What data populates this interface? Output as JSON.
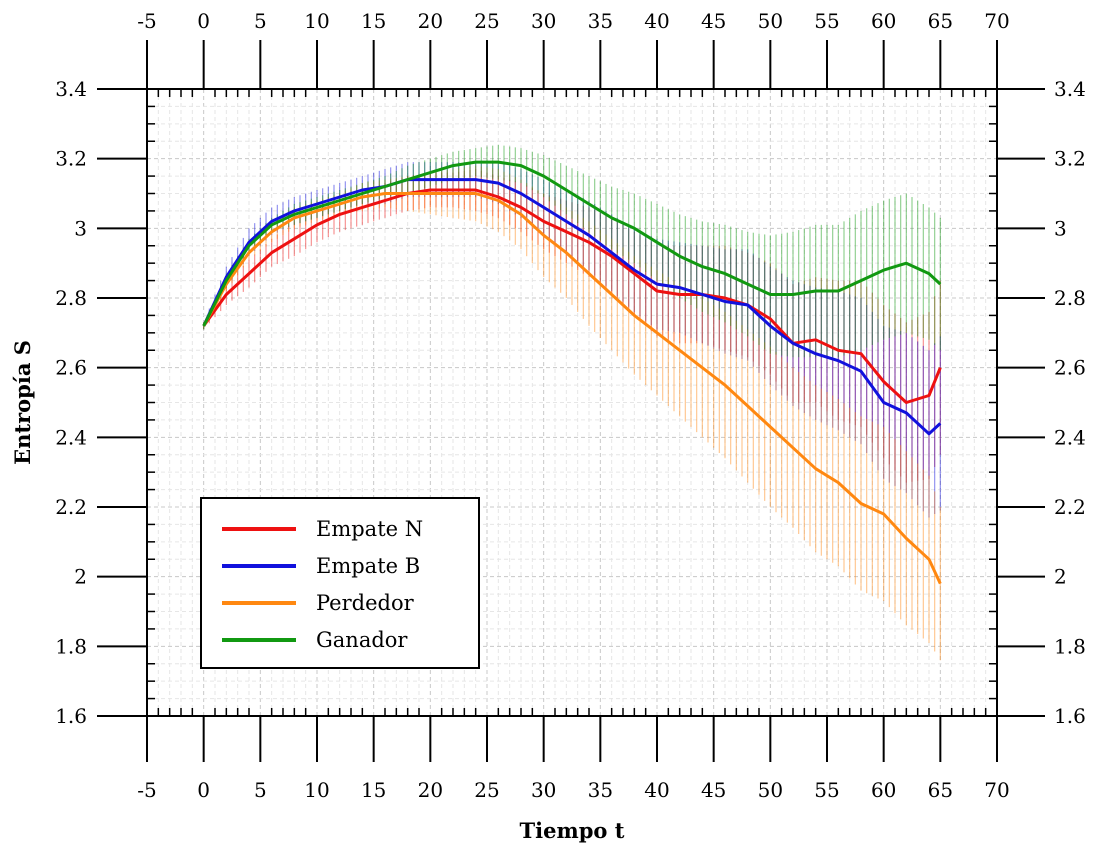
{
  "chart_data": {
    "type": "line",
    "xlabel": "Tiempo t",
    "ylabel": "Entropía S",
    "xlim": [
      -5,
      70
    ],
    "ylim": [
      1.6,
      3.4
    ],
    "x_ticks": [
      "-5",
      "0",
      "5",
      "10",
      "15",
      "20",
      "25",
      "30",
      "35",
      "40",
      "45",
      "50",
      "55",
      "60",
      "65",
      "70"
    ],
    "y_ticks": [
      "1.6",
      "1.8",
      "2",
      "2.2",
      "2.4",
      "2.6",
      "2.8",
      "3",
      "3.2",
      "3.4"
    ],
    "grid": true,
    "legend_position": "bottom-left",
    "error_bars": true,
    "series": [
      {
        "name": "Empate N",
        "color": "#ee1111",
        "x": [
          0,
          2,
          4,
          6,
          8,
          10,
          12,
          14,
          16,
          18,
          20,
          22,
          24,
          26,
          28,
          30,
          32,
          34,
          36,
          38,
          40,
          42,
          44,
          46,
          48,
          50,
          52,
          54,
          56,
          58,
          60,
          62,
          64,
          65
        ],
        "y": [
          2.72,
          2.81,
          2.87,
          2.93,
          2.97,
          3.01,
          3.04,
          3.06,
          3.08,
          3.1,
          3.11,
          3.11,
          3.11,
          3.09,
          3.06,
          3.02,
          2.99,
          2.96,
          2.92,
          2.87,
          2.82,
          2.81,
          2.81,
          2.8,
          2.78,
          2.74,
          2.67,
          2.68,
          2.65,
          2.64,
          2.56,
          2.5,
          2.52,
          2.6
        ],
        "err": [
          0.01,
          0.03,
          0.04,
          0.04,
          0.05,
          0.05,
          0.05,
          0.05,
          0.05,
          0.05,
          0.05,
          0.05,
          0.06,
          0.06,
          0.07,
          0.08,
          0.09,
          0.1,
          0.11,
          0.12,
          0.13,
          0.14,
          0.14,
          0.15,
          0.15,
          0.16,
          0.17,
          0.18,
          0.2,
          0.21,
          0.22,
          0.23,
          0.24,
          0.25
        ]
      },
      {
        "name": "Empate B",
        "color": "#1111dd",
        "x": [
          0,
          2,
          4,
          6,
          8,
          10,
          12,
          14,
          16,
          18,
          20,
          22,
          24,
          26,
          28,
          30,
          32,
          34,
          36,
          38,
          40,
          42,
          44,
          46,
          48,
          50,
          52,
          54,
          56,
          58,
          60,
          62,
          64,
          65
        ],
        "y": [
          2.72,
          2.86,
          2.96,
          3.02,
          3.05,
          3.07,
          3.09,
          3.11,
          3.12,
          3.14,
          3.14,
          3.14,
          3.14,
          3.13,
          3.1,
          3.06,
          3.02,
          2.98,
          2.93,
          2.88,
          2.84,
          2.83,
          2.81,
          2.79,
          2.78,
          2.72,
          2.67,
          2.64,
          2.62,
          2.59,
          2.5,
          2.47,
          2.41,
          2.44
        ],
        "err": [
          0.01,
          0.03,
          0.04,
          0.04,
          0.04,
          0.04,
          0.04,
          0.04,
          0.05,
          0.05,
          0.05,
          0.05,
          0.05,
          0.06,
          0.07,
          0.08,
          0.09,
          0.1,
          0.11,
          0.12,
          0.13,
          0.13,
          0.14,
          0.15,
          0.16,
          0.17,
          0.18,
          0.19,
          0.2,
          0.21,
          0.22,
          0.23,
          0.24,
          0.25
        ]
      },
      {
        "name": "Perdedor",
        "color": "#ff8811",
        "x": [
          0,
          2,
          4,
          6,
          8,
          10,
          12,
          14,
          16,
          18,
          20,
          22,
          24,
          26,
          28,
          30,
          32,
          34,
          36,
          38,
          40,
          42,
          44,
          46,
          48,
          50,
          52,
          54,
          56,
          58,
          60,
          62,
          64,
          65
        ],
        "y": [
          2.72,
          2.84,
          2.93,
          2.99,
          3.03,
          3.05,
          3.07,
          3.09,
          3.1,
          3.1,
          3.1,
          3.1,
          3.1,
          3.08,
          3.04,
          2.98,
          2.93,
          2.87,
          2.81,
          2.75,
          2.7,
          2.65,
          2.6,
          2.55,
          2.49,
          2.43,
          2.37,
          2.31,
          2.27,
          2.21,
          2.18,
          2.11,
          2.05,
          1.98
        ],
        "err": [
          0.01,
          0.02,
          0.02,
          0.03,
          0.03,
          0.03,
          0.03,
          0.04,
          0.04,
          0.05,
          0.06,
          0.07,
          0.08,
          0.09,
          0.1,
          0.12,
          0.13,
          0.15,
          0.16,
          0.17,
          0.18,
          0.19,
          0.2,
          0.21,
          0.22,
          0.23,
          0.23,
          0.24,
          0.24,
          0.25,
          0.25,
          0.25,
          0.24,
          0.22
        ]
      },
      {
        "name": "Ganador",
        "color": "#119911",
        "x": [
          0,
          2,
          4,
          6,
          8,
          10,
          12,
          14,
          16,
          18,
          20,
          22,
          24,
          26,
          28,
          30,
          32,
          34,
          36,
          38,
          40,
          42,
          44,
          46,
          48,
          50,
          52,
          54,
          56,
          58,
          60,
          62,
          64,
          65
        ],
        "y": [
          2.72,
          2.85,
          2.95,
          3.01,
          3.04,
          3.06,
          3.08,
          3.1,
          3.12,
          3.14,
          3.16,
          3.18,
          3.19,
          3.19,
          3.18,
          3.15,
          3.11,
          3.07,
          3.03,
          3.0,
          2.96,
          2.92,
          2.89,
          2.87,
          2.84,
          2.81,
          2.81,
          2.82,
          2.82,
          2.85,
          2.88,
          2.9,
          2.87,
          2.84
        ],
        "err": [
          0.01,
          0.02,
          0.02,
          0.02,
          0.03,
          0.03,
          0.03,
          0.03,
          0.03,
          0.04,
          0.04,
          0.04,
          0.04,
          0.05,
          0.05,
          0.06,
          0.07,
          0.08,
          0.09,
          0.1,
          0.11,
          0.12,
          0.13,
          0.14,
          0.15,
          0.17,
          0.18,
          0.19,
          0.19,
          0.2,
          0.2,
          0.2,
          0.19,
          0.19
        ]
      }
    ]
  }
}
